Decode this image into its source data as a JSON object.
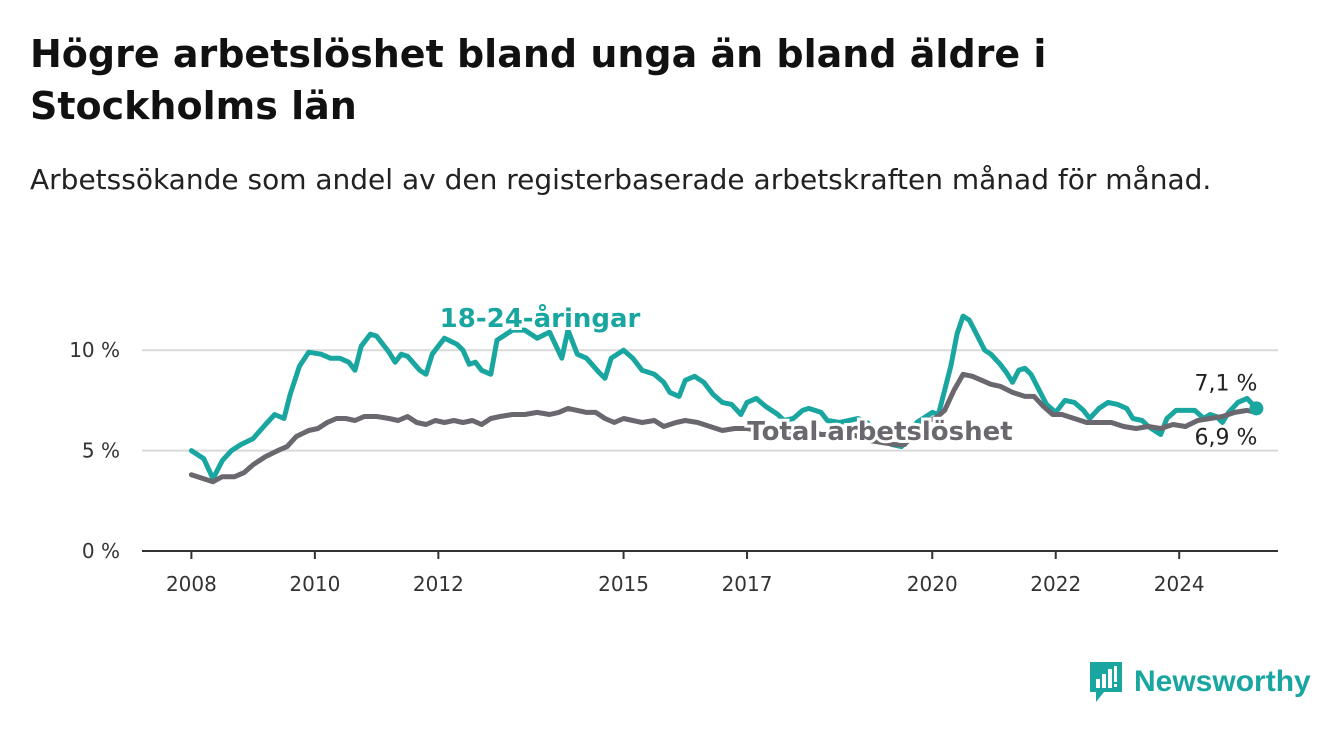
{
  "title": "Högre arbetslöshet bland unga än bland äldre i Stockholms län",
  "subtitle": "Arbetssökande som andel av den registerbaserade arbetskraften månad för månad.",
  "brand": "Newsworthy",
  "colors": {
    "youth": "#1aa6a0",
    "total": "#6b676f",
    "grid": "#d9d9d9",
    "axis": "#333333"
  },
  "chart_data": {
    "type": "line",
    "title": "Högre arbetslöshet bland unga än bland äldre i Stockholms län",
    "subtitle": "Arbetssökande som andel av den registerbaserade arbetskraften månad för månad.",
    "xlabel": "",
    "ylabel": "",
    "ylim": [
      0,
      12.5
    ],
    "xlim": [
      2007.2,
      2025.6
    ],
    "grid": true,
    "legend": "inline labels",
    "y_ticks": [
      {
        "value": 0,
        "label": "0 %"
      },
      {
        "value": 5,
        "label": "5 %"
      },
      {
        "value": 10,
        "label": "10 %"
      }
    ],
    "x_ticks": [
      {
        "value": 2008,
        "label": "2008"
      },
      {
        "value": 2010,
        "label": "2010"
      },
      {
        "value": 2012,
        "label": "2012"
      },
      {
        "value": 2015,
        "label": "2015"
      },
      {
        "value": 2017,
        "label": "2017"
      },
      {
        "value": 2020,
        "label": "2020"
      },
      {
        "value": 2022,
        "label": "2022"
      },
      {
        "value": 2024,
        "label": "2024"
      }
    ],
    "series": [
      {
        "name": "18-24-åringar",
        "color": "#1aa6a0",
        "end_label": "7,1 %",
        "points": [
          [
            2008.0,
            5.0
          ],
          [
            2008.2,
            4.6
          ],
          [
            2008.35,
            3.6
          ],
          [
            2008.5,
            4.5
          ],
          [
            2008.65,
            5.0
          ],
          [
            2008.8,
            5.3
          ],
          [
            2009.0,
            5.6
          ],
          [
            2009.2,
            6.3
          ],
          [
            2009.35,
            6.8
          ],
          [
            2009.5,
            6.6
          ],
          [
            2009.6,
            7.8
          ],
          [
            2009.75,
            9.2
          ],
          [
            2009.9,
            9.9
          ],
          [
            2010.1,
            9.8
          ],
          [
            2010.25,
            9.6
          ],
          [
            2010.4,
            9.6
          ],
          [
            2010.55,
            9.4
          ],
          [
            2010.65,
            9.0
          ],
          [
            2010.75,
            10.2
          ],
          [
            2010.9,
            10.8
          ],
          [
            2011.0,
            10.7
          ],
          [
            2011.2,
            9.9
          ],
          [
            2011.3,
            9.4
          ],
          [
            2011.4,
            9.8
          ],
          [
            2011.5,
            9.7
          ],
          [
            2011.7,
            9.0
          ],
          [
            2011.8,
            8.8
          ],
          [
            2011.9,
            9.8
          ],
          [
            2012.0,
            10.2
          ],
          [
            2012.1,
            10.6
          ],
          [
            2012.3,
            10.3
          ],
          [
            2012.4,
            10.0
          ],
          [
            2012.5,
            9.3
          ],
          [
            2012.6,
            9.4
          ],
          [
            2012.7,
            9.0
          ],
          [
            2012.85,
            8.8
          ],
          [
            2012.95,
            10.5
          ],
          [
            2013.2,
            11.0
          ],
          [
            2013.4,
            11.0
          ],
          [
            2013.6,
            10.6
          ],
          [
            2013.8,
            10.9
          ],
          [
            2014.0,
            9.6
          ],
          [
            2014.1,
            11.0
          ],
          [
            2014.25,
            9.8
          ],
          [
            2014.4,
            9.6
          ],
          [
            2014.6,
            8.9
          ],
          [
            2014.7,
            8.6
          ],
          [
            2014.8,
            9.6
          ],
          [
            2015.0,
            10.0
          ],
          [
            2015.15,
            9.6
          ],
          [
            2015.3,
            9.0
          ],
          [
            2015.5,
            8.8
          ],
          [
            2015.65,
            8.4
          ],
          [
            2015.75,
            7.9
          ],
          [
            2015.9,
            7.7
          ],
          [
            2016.0,
            8.5
          ],
          [
            2016.15,
            8.7
          ],
          [
            2016.3,
            8.4
          ],
          [
            2016.45,
            7.8
          ],
          [
            2016.6,
            7.4
          ],
          [
            2016.75,
            7.3
          ],
          [
            2016.9,
            6.8
          ],
          [
            2017.0,
            7.4
          ],
          [
            2017.15,
            7.6
          ],
          [
            2017.3,
            7.2
          ],
          [
            2017.5,
            6.8
          ],
          [
            2017.6,
            6.5
          ],
          [
            2017.75,
            6.6
          ],
          [
            2017.9,
            7.0
          ],
          [
            2018.0,
            7.1
          ],
          [
            2018.2,
            6.9
          ],
          [
            2018.3,
            6.5
          ],
          [
            2018.5,
            6.4
          ],
          [
            2018.65,
            6.5
          ],
          [
            2018.8,
            6.6
          ],
          [
            2018.95,
            6.4
          ],
          [
            2019.05,
            5.9
          ],
          [
            2019.2,
            5.6
          ],
          [
            2019.35,
            5.3
          ],
          [
            2019.5,
            5.2
          ],
          [
            2019.6,
            5.6
          ],
          [
            2019.75,
            6.4
          ],
          [
            2019.9,
            6.7
          ],
          [
            2020.0,
            6.9
          ],
          [
            2020.1,
            6.8
          ],
          [
            2020.2,
            8.0
          ],
          [
            2020.3,
            9.2
          ],
          [
            2020.4,
            10.8
          ],
          [
            2020.5,
            11.7
          ],
          [
            2020.6,
            11.5
          ],
          [
            2020.7,
            10.9
          ],
          [
            2020.85,
            10.0
          ],
          [
            2020.95,
            9.8
          ],
          [
            2021.1,
            9.3
          ],
          [
            2021.2,
            8.9
          ],
          [
            2021.3,
            8.4
          ],
          [
            2021.4,
            9.0
          ],
          [
            2021.5,
            9.1
          ],
          [
            2021.6,
            8.8
          ],
          [
            2021.75,
            7.9
          ],
          [
            2021.85,
            7.3
          ],
          [
            2022.0,
            6.9
          ],
          [
            2022.15,
            7.5
          ],
          [
            2022.3,
            7.4
          ],
          [
            2022.45,
            7.0
          ],
          [
            2022.55,
            6.6
          ],
          [
            2022.7,
            7.1
          ],
          [
            2022.85,
            7.4
          ],
          [
            2023.0,
            7.3
          ],
          [
            2023.15,
            7.1
          ],
          [
            2023.25,
            6.6
          ],
          [
            2023.4,
            6.5
          ],
          [
            2023.5,
            6.2
          ],
          [
            2023.6,
            6.0
          ],
          [
            2023.7,
            5.8
          ],
          [
            2023.8,
            6.6
          ],
          [
            2023.95,
            7.0
          ],
          [
            2024.1,
            7.0
          ],
          [
            2024.25,
            7.0
          ],
          [
            2024.4,
            6.6
          ],
          [
            2024.5,
            6.8
          ],
          [
            2024.6,
            6.7
          ],
          [
            2024.7,
            6.4
          ],
          [
            2024.8,
            6.9
          ],
          [
            2024.95,
            7.4
          ],
          [
            2025.1,
            7.6
          ],
          [
            2025.25,
            7.1
          ]
        ]
      },
      {
        "name": "Total arbetslöshet",
        "color": "#6b676f",
        "end_label": "6,9 %",
        "points": [
          [
            2008.0,
            3.8
          ],
          [
            2008.2,
            3.6
          ],
          [
            2008.35,
            3.45
          ],
          [
            2008.5,
            3.7
          ],
          [
            2008.7,
            3.7
          ],
          [
            2008.85,
            3.9
          ],
          [
            2009.0,
            4.3
          ],
          [
            2009.2,
            4.7
          ],
          [
            2009.4,
            5.0
          ],
          [
            2009.55,
            5.2
          ],
          [
            2009.7,
            5.7
          ],
          [
            2009.9,
            6.0
          ],
          [
            2010.05,
            6.1
          ],
          [
            2010.2,
            6.4
          ],
          [
            2010.35,
            6.6
          ],
          [
            2010.5,
            6.6
          ],
          [
            2010.65,
            6.5
          ],
          [
            2010.8,
            6.7
          ],
          [
            2011.0,
            6.7
          ],
          [
            2011.2,
            6.6
          ],
          [
            2011.35,
            6.5
          ],
          [
            2011.5,
            6.7
          ],
          [
            2011.65,
            6.4
          ],
          [
            2011.8,
            6.3
          ],
          [
            2011.95,
            6.5
          ],
          [
            2012.1,
            6.4
          ],
          [
            2012.25,
            6.5
          ],
          [
            2012.4,
            6.4
          ],
          [
            2012.55,
            6.5
          ],
          [
            2012.7,
            6.3
          ],
          [
            2012.85,
            6.6
          ],
          [
            2013.0,
            6.7
          ],
          [
            2013.2,
            6.8
          ],
          [
            2013.4,
            6.8
          ],
          [
            2013.6,
            6.9
          ],
          [
            2013.8,
            6.8
          ],
          [
            2013.95,
            6.9
          ],
          [
            2014.1,
            7.1
          ],
          [
            2014.25,
            7.0
          ],
          [
            2014.4,
            6.9
          ],
          [
            2014.55,
            6.9
          ],
          [
            2014.7,
            6.6
          ],
          [
            2014.85,
            6.4
          ],
          [
            2015.0,
            6.6
          ],
          [
            2015.15,
            6.5
          ],
          [
            2015.3,
            6.4
          ],
          [
            2015.5,
            6.5
          ],
          [
            2015.65,
            6.2
          ],
          [
            2015.85,
            6.4
          ],
          [
            2016.0,
            6.5
          ],
          [
            2016.2,
            6.4
          ],
          [
            2016.4,
            6.2
          ],
          [
            2016.6,
            6.0
          ],
          [
            2016.8,
            6.1
          ],
          [
            2017.0,
            6.1
          ],
          [
            2017.2,
            6.0
          ],
          [
            2017.4,
            6.0
          ],
          [
            2017.55,
            5.9
          ],
          [
            2017.7,
            5.8
          ],
          [
            2017.85,
            6.0
          ],
          [
            2018.0,
            6.0
          ],
          [
            2018.2,
            5.8
          ],
          [
            2018.4,
            5.8
          ],
          [
            2018.6,
            5.9
          ],
          [
            2018.8,
            5.7
          ],
          [
            2019.0,
            5.5
          ],
          [
            2019.2,
            5.4
          ],
          [
            2019.4,
            5.3
          ],
          [
            2019.55,
            5.3
          ],
          [
            2019.7,
            5.8
          ],
          [
            2019.9,
            6.5
          ],
          [
            2020.05,
            6.6
          ],
          [
            2020.2,
            7.0
          ],
          [
            2020.35,
            8.0
          ],
          [
            2020.5,
            8.8
          ],
          [
            2020.65,
            8.7
          ],
          [
            2020.8,
            8.5
          ],
          [
            2020.95,
            8.3
          ],
          [
            2021.1,
            8.2
          ],
          [
            2021.3,
            7.9
          ],
          [
            2021.5,
            7.7
          ],
          [
            2021.65,
            7.7
          ],
          [
            2021.8,
            7.2
          ],
          [
            2021.95,
            6.8
          ],
          [
            2022.1,
            6.8
          ],
          [
            2022.3,
            6.6
          ],
          [
            2022.5,
            6.4
          ],
          [
            2022.7,
            6.4
          ],
          [
            2022.9,
            6.4
          ],
          [
            2023.1,
            6.2
          ],
          [
            2023.3,
            6.1
          ],
          [
            2023.5,
            6.2
          ],
          [
            2023.7,
            6.1
          ],
          [
            2023.9,
            6.3
          ],
          [
            2024.1,
            6.2
          ],
          [
            2024.3,
            6.5
          ],
          [
            2024.5,
            6.6
          ],
          [
            2024.7,
            6.7
          ],
          [
            2024.9,
            6.9
          ],
          [
            2025.1,
            7.0
          ],
          [
            2025.25,
            6.9
          ]
        ]
      }
    ],
    "annotations": [
      {
        "text": "18-24-åringar",
        "series": "18-24-åringar"
      },
      {
        "text": "Total arbetslöshet",
        "series": "Total arbetslöshet"
      },
      {
        "text": "7,1 %",
        "series": "18-24-åringar"
      },
      {
        "text": "6,9 %",
        "series": "Total arbetslöshet"
      }
    ]
  }
}
